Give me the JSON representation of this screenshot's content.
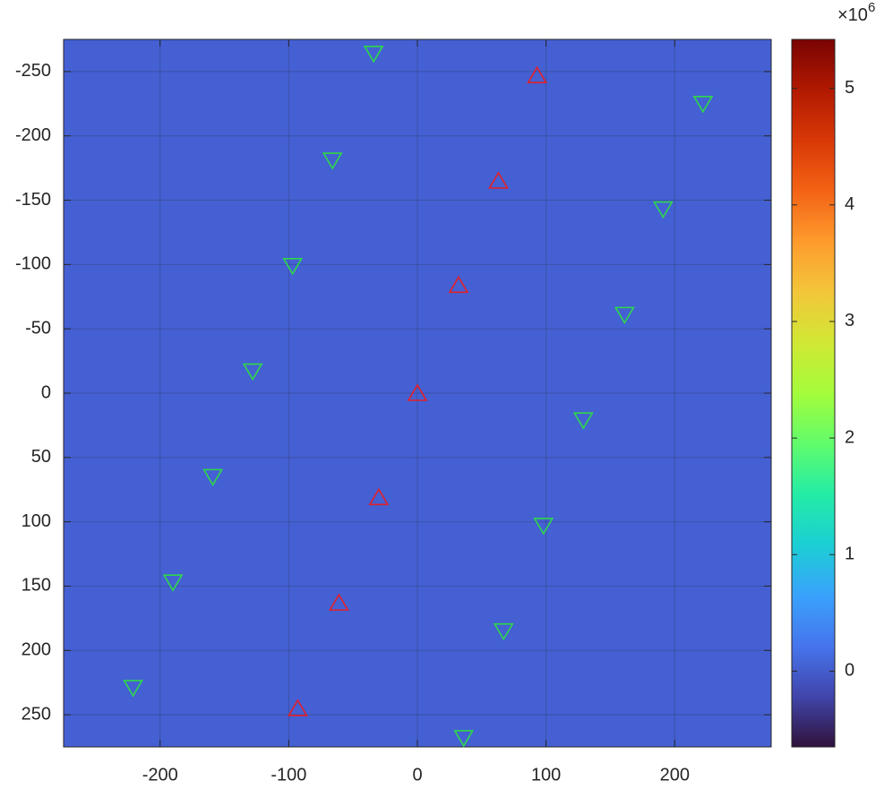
{
  "chart_data": {
    "type": "scatter",
    "background_color": "#4460d3",
    "xlim": [
      -275,
      275
    ],
    "ylim": [
      -275,
      275
    ],
    "y_reversed": true,
    "xticks": [
      -200,
      -100,
      0,
      100,
      200
    ],
    "yticks": [
      -250,
      -200,
      -150,
      -100,
      -50,
      0,
      50,
      100,
      150,
      200,
      250
    ],
    "grid": true,
    "series": [
      {
        "color": "#e0202a",
        "marker": "^",
        "x": [
          0,
          32,
          63,
          93,
          -30,
          -61,
          -93
        ],
        "y": [
          0,
          -84,
          -165,
          -247,
          81,
          163,
          245
        ]
      },
      {
        "color": "#2ed84a",
        "marker": "v",
        "x": [
          -34,
          -66,
          -97,
          -128,
          -159,
          -190,
          -221,
          222,
          191,
          161,
          129,
          98,
          67,
          36
        ],
        "y": [
          -264,
          -181,
          -99,
          -17,
          65,
          147,
          229,
          -225,
          -143,
          -61,
          21,
          103,
          185,
          268
        ]
      }
    ],
    "colorbar": {
      "clim": [
        -0.65,
        5.42
      ],
      "ticks": [
        0,
        1,
        2,
        3,
        4,
        5
      ],
      "exponent_base": "×10",
      "exponent": "6",
      "colormap": [
        "#30123b",
        "#4145ab",
        "#4675ed",
        "#39a2fc",
        "#1bcfd4",
        "#24eca6",
        "#61fc6c",
        "#a4fc3b",
        "#d1e834",
        "#f3c63a",
        "#fe9b2d",
        "#f36315",
        "#d93806",
        "#b11901",
        "#7a0403"
      ]
    }
  }
}
